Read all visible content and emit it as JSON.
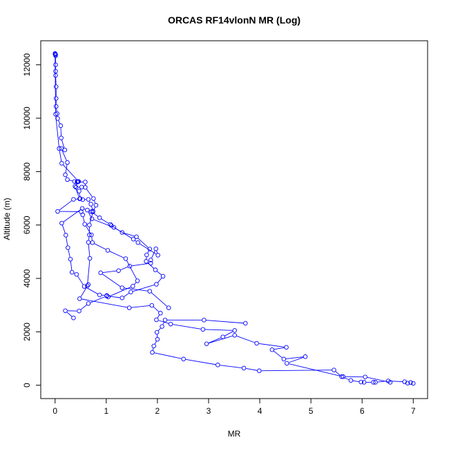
{
  "chart_data": {
    "type": "line",
    "title": "ORCAS RF14vlonN MR (Log)",
    "xlabel": "MR",
    "ylabel": "Altitude (m)",
    "xlim": [
      -0.28,
      7.28
    ],
    "ylim": [
      -500,
      12900
    ],
    "x_ticks": [
      "0",
      "1",
      "2",
      "3",
      "4",
      "5",
      "6",
      "7"
    ],
    "y_ticks": [
      "0",
      "2000",
      "4000",
      "6000",
      "8000",
      "10000",
      "12000"
    ],
    "grid": false,
    "legend": "none",
    "colors": {
      "series": "#0000ff",
      "axis": "#000000"
    },
    "series": [
      {
        "points": [
          [
            0.0,
            12420
          ],
          [
            0.0,
            12400
          ],
          [
            0.01,
            12380
          ],
          [
            0.01,
            12340
          ],
          [
            0.01,
            12000
          ],
          [
            0.01,
            11760
          ],
          [
            0.01,
            11600
          ],
          [
            0.02,
            11180
          ],
          [
            0.02,
            10740
          ],
          [
            0.02,
            10440
          ],
          [
            0.04,
            10170
          ],
          [
            0.05,
            9990
          ],
          [
            0.11,
            9720
          ],
          [
            0.12,
            9260
          ],
          [
            0.19,
            8810
          ],
          [
            0.12,
            8870
          ],
          [
            0.24,
            8340
          ],
          [
            0.2,
            7880
          ],
          [
            0.24,
            7700
          ],
          [
            0.38,
            7630
          ],
          [
            0.43,
            7620
          ],
          [
            0.41,
            7410
          ],
          [
            0.52,
            7420
          ],
          [
            0.47,
            7270
          ],
          [
            0.49,
            6990
          ],
          [
            0.54,
            6950
          ],
          [
            0.65,
            6960
          ],
          [
            0.7,
            6780
          ],
          [
            0.74,
            6520
          ],
          [
            0.71,
            6500
          ],
          [
            0.87,
            6270
          ],
          [
            1.08,
            6020
          ],
          [
            1.1,
            5980
          ],
          [
            1.31,
            5720
          ],
          [
            1.59,
            5560
          ],
          [
            1.85,
            5100
          ],
          [
            1.79,
            4880
          ],
          [
            1.78,
            4640
          ],
          [
            1.96,
            4320
          ],
          [
            2.11,
            4080
          ],
          [
            1.98,
            3780
          ],
          [
            1.48,
            3490
          ],
          [
            1.31,
            3270
          ],
          [
            1.01,
            3340
          ],
          [
            0.65,
            3060
          ],
          [
            0.47,
            2780
          ],
          [
            0.2,
            2790
          ],
          [
            0.36,
            2520
          ]
        ]
      },
      {
        "points": [
          [
            3.72,
            2320
          ],
          [
            2.91,
            2440
          ],
          [
            2.15,
            2440
          ],
          [
            2.09,
            2200
          ],
          [
            1.99,
            1980
          ],
          [
            2.0,
            1720
          ],
          [
            1.93,
            1470
          ],
          [
            1.9,
            1230
          ],
          [
            2.51,
            980
          ],
          [
            3.18,
            760
          ],
          [
            3.69,
            640
          ],
          [
            3.99,
            540
          ],
          [
            5.45,
            570
          ],
          [
            5.6,
            320
          ],
          [
            5.78,
            180
          ],
          [
            5.98,
            120
          ],
          [
            6.04,
            110
          ],
          [
            6.22,
            110
          ],
          [
            6.26,
            110
          ],
          [
            6.51,
            160
          ],
          [
            6.83,
            130
          ],
          [
            6.89,
            80
          ],
          [
            6.95,
            100
          ],
          [
            7.0,
            70
          ]
        ]
      },
      {
        "points": [
          [
            6.55,
            110
          ],
          [
            6.06,
            310
          ],
          [
            5.63,
            320
          ],
          [
            4.53,
            820
          ],
          [
            4.89,
            1070
          ],
          [
            4.47,
            980
          ],
          [
            4.24,
            1330
          ],
          [
            4.52,
            1420
          ],
          [
            3.94,
            1570
          ],
          [
            3.51,
            1870
          ],
          [
            2.96,
            1550
          ],
          [
            3.28,
            1810
          ],
          [
            3.51,
            2050
          ],
          [
            2.89,
            2090
          ],
          [
            2.26,
            2290
          ],
          [
            1.98,
            2450
          ],
          [
            2.06,
            2700
          ],
          [
            1.89,
            2990
          ],
          [
            1.45,
            2900
          ],
          [
            0.48,
            3240
          ],
          [
            0.65,
            3770
          ],
          [
            0.63,
            3720
          ],
          [
            0.68,
            4750
          ],
          [
            0.65,
            5350
          ],
          [
            0.67,
            5630
          ],
          [
            0.67,
            6000
          ],
          [
            0.74,
            6490
          ],
          [
            0.8,
            6740
          ],
          [
            0.75,
            6990
          ],
          [
            0.59,
            7410
          ],
          [
            0.59,
            7610
          ],
          [
            0.44,
            7610
          ],
          [
            0.46,
            7630
          ],
          [
            0.13,
            8310
          ],
          [
            0.08,
            8860
          ],
          [
            0.01,
            10150
          ],
          [
            0.0,
            12420
          ]
        ]
      },
      {
        "points": [
          [
            2.22,
            2900
          ],
          [
            1.85,
            3520
          ],
          [
            1.31,
            3650
          ],
          [
            0.89,
            4210
          ],
          [
            1.24,
            4290
          ],
          [
            1.46,
            4460
          ],
          [
            1.87,
            4570
          ],
          [
            1.87,
            4690
          ],
          [
            1.97,
            5110
          ],
          [
            2.01,
            4870
          ],
          [
            1.62,
            5340
          ],
          [
            1.53,
            5470
          ],
          [
            1.15,
            5910
          ],
          [
            0.72,
            6230
          ],
          [
            0.63,
            6560
          ],
          [
            0.53,
            6620
          ],
          [
            0.13,
            6070
          ],
          [
            0.21,
            5620
          ],
          [
            0.25,
            5150
          ],
          [
            0.3,
            4720
          ],
          [
            0.33,
            4230
          ],
          [
            0.42,
            4150
          ],
          [
            0.57,
            3700
          ],
          [
            0.87,
            3380
          ],
          [
            1.01,
            3360
          ],
          [
            1.04,
            3310
          ],
          [
            1.52,
            3710
          ],
          [
            1.61,
            3910
          ],
          [
            1.38,
            4740
          ],
          [
            1.03,
            5050
          ],
          [
            0.73,
            5340
          ],
          [
            0.71,
            5630
          ],
          [
            0.58,
            6030
          ],
          [
            0.54,
            6380
          ],
          [
            0.51,
            6500
          ],
          [
            0.05,
            6510
          ],
          [
            0.36,
            6960
          ],
          [
            0.48,
            6980
          ],
          [
            0.39,
            7450
          ],
          [
            0.45,
            7630
          ]
        ]
      }
    ]
  }
}
